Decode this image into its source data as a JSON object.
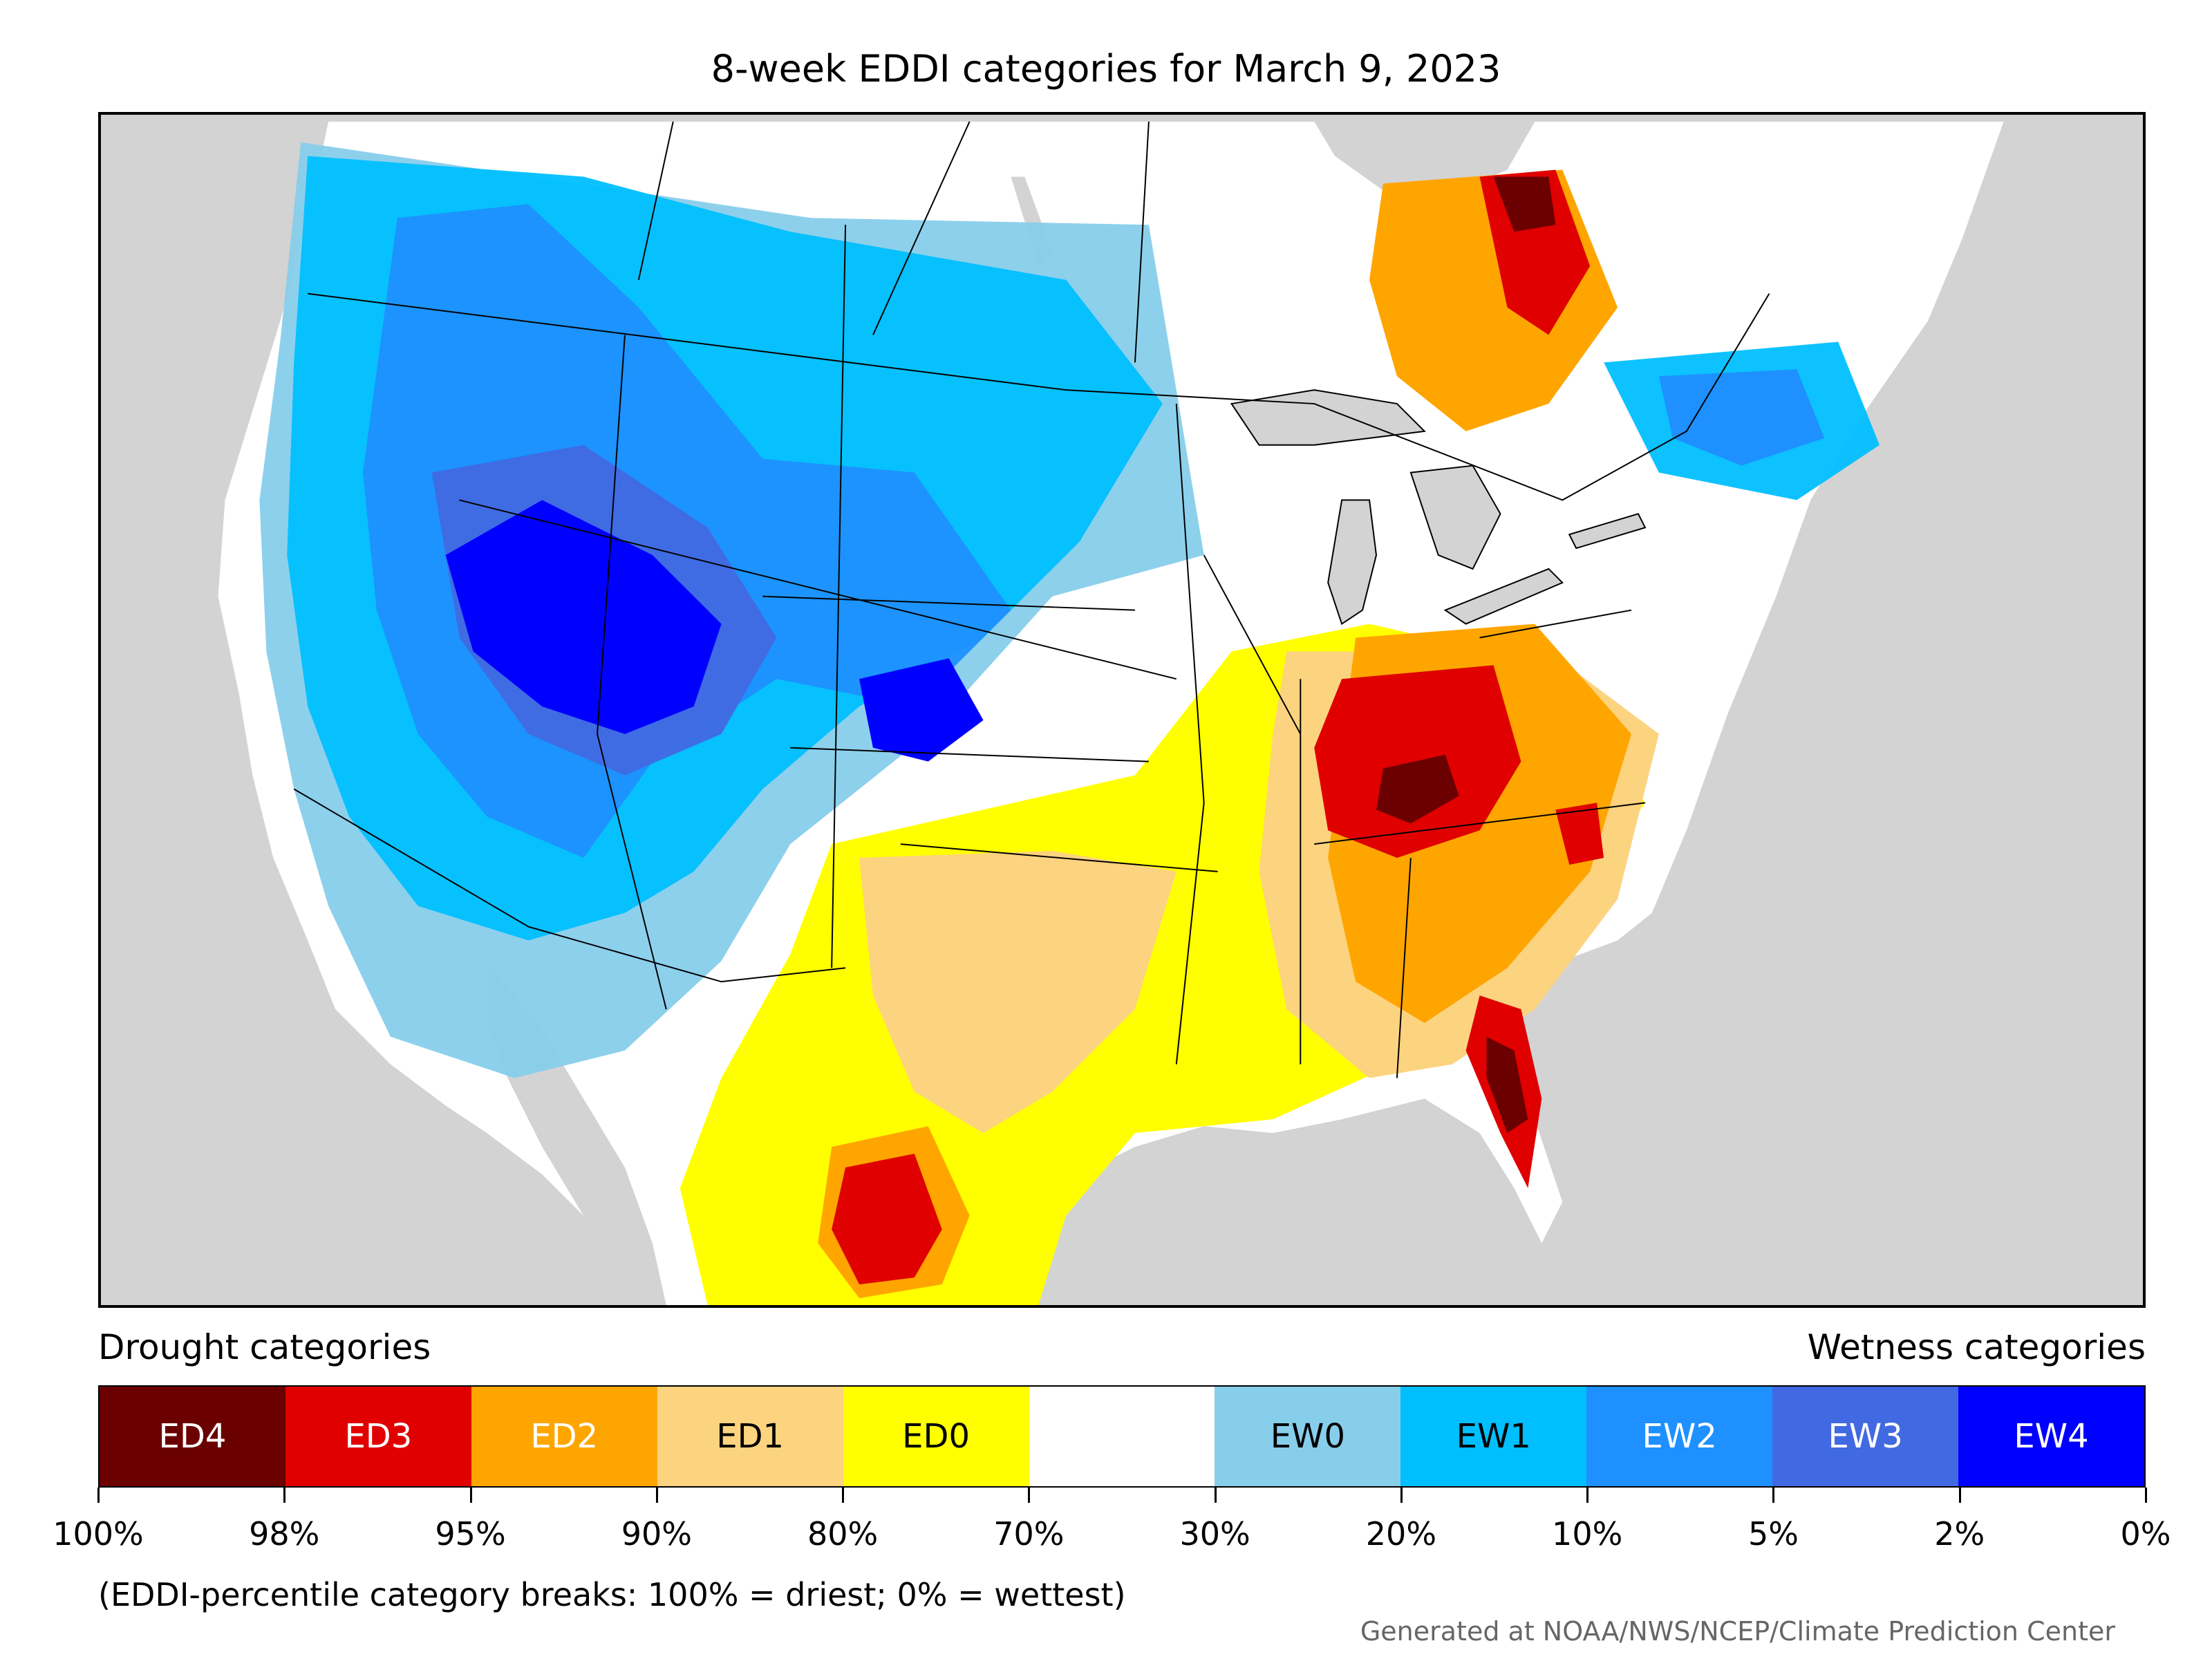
{
  "title": "8-week EDDI categories for March 9, 2023",
  "legend": {
    "left_heading": "Drought categories",
    "right_heading": "Wetness categories",
    "categories": [
      {
        "label": "ED4",
        "color": "#6b0000",
        "text_color": "#ffffff"
      },
      {
        "label": "ED3",
        "color": "#e00000",
        "text_color": "#ffffff"
      },
      {
        "label": "ED2",
        "color": "#ffa500",
        "text_color": "#ffffff"
      },
      {
        "label": "ED1",
        "color": "#fcd37f",
        "text_color": "#000000"
      },
      {
        "label": "ED0",
        "color": "#ffff00",
        "text_color": "#000000"
      },
      {
        "label": "",
        "color": "#ffffff",
        "text_color": "#000000"
      },
      {
        "label": "EW0",
        "color": "#87ceeb",
        "text_color": "#000000"
      },
      {
        "label": "EW1",
        "color": "#00bfff",
        "text_color": "#000000"
      },
      {
        "label": "EW2",
        "color": "#1e90ff",
        "text_color": "#ffffff"
      },
      {
        "label": "EW3",
        "color": "#4169e1",
        "text_color": "#ffffff"
      },
      {
        "label": "EW4",
        "color": "#0000ff",
        "text_color": "#ffffff"
      }
    ],
    "breaks": [
      "100%",
      "98%",
      "95%",
      "90%",
      "80%",
      "70%",
      "30%",
      "20%",
      "10%",
      "5%",
      "2%",
      "0%"
    ],
    "note": "(EDDI-percentile category breaks: 100% = driest; 0% = wettest)"
  },
  "credit": "Generated at NOAA/NWS/NCEP/Climate Prediction Center",
  "map": {
    "background_color": "#d3d3d3",
    "land_color": "#ffffff",
    "boundary_color": "#000000"
  }
}
